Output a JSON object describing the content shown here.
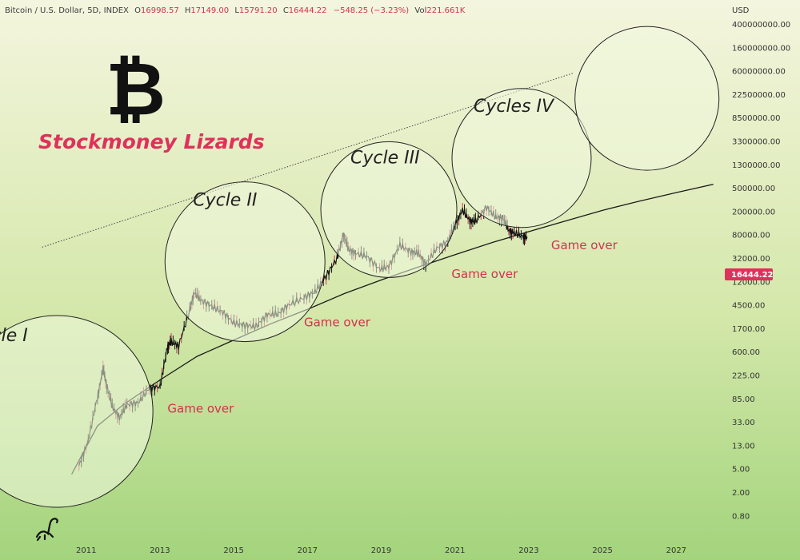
{
  "header": {
    "symbol": "Bitcoin / U.S. Dollar, 5D, INDEX",
    "open_label": "O",
    "open": "16998.57",
    "high_label": "H",
    "high": "17149.00",
    "low_label": "L",
    "low": "15791.20",
    "close_label": "C",
    "close": "16444.22",
    "change": "−548.25 (−3.23%)",
    "vol_label": "Vol",
    "vol": "221.661K"
  },
  "brand": {
    "logo_glyph": "₿",
    "name": "Stockmoney Lizards"
  },
  "price_badge": "16444.22",
  "colors": {
    "accent": "#e0305b",
    "badge": "#e0305b",
    "background_top": "#f3f5dc",
    "background_bottom": "#a6d680"
  },
  "chart_data": {
    "type": "line",
    "currency": "USD",
    "y_scale": "log",
    "ylim": [
      0.4,
      800000000
    ],
    "xlim": [
      2009.8,
      2028.0
    ],
    "x_ticks": [
      "2011",
      "2013",
      "2015",
      "2017",
      "2019",
      "2021",
      "2023",
      "2025",
      "2027"
    ],
    "y_ticks": [
      "400000000.00",
      "160000000.00",
      "60000000.00",
      "22500000.00",
      "8500000.00",
      "3300000.00",
      "1300000.00",
      "500000.00",
      "200000.00",
      "80000.00",
      "32000.00",
      "12000.00",
      "4500.00",
      "1700.00",
      "600.00",
      "225.00",
      "85.00",
      "33.00",
      "13.00",
      "5.00",
      "2.00",
      "0.80"
    ],
    "series": [
      {
        "kind": "price",
        "x": [
          2010.8,
          2011.05,
          2011.3,
          2011.45,
          2011.55,
          2011.7,
          2011.9,
          2012.1,
          2012.4,
          2012.7,
          2013.0,
          2013.2,
          2013.3,
          2013.5,
          2013.8,
          2013.92,
          2014.1,
          2014.4,
          2014.7,
          2015.0,
          2015.3,
          2015.6,
          2015.9,
          2016.2,
          2016.5,
          2016.9,
          2017.2,
          2017.5,
          2017.8,
          2017.97,
          2018.1,
          2018.3,
          2018.6,
          2018.95,
          2019.2,
          2019.5,
          2019.8,
          2020.0,
          2020.2,
          2020.5,
          2020.8,
          2021.0,
          2021.2,
          2021.4,
          2021.55,
          2021.85,
          2022.1,
          2022.3,
          2022.45,
          2022.6,
          2022.85,
          2022.95
        ],
        "y": [
          0.3,
          1.0,
          8,
          30,
          14,
          5,
          3,
          5.5,
          6,
          12,
          13,
          90,
          110,
          90,
          500,
          1150,
          800,
          600,
          450,
          270,
          240,
          230,
          400,
          420,
          650,
          900,
          1200,
          2500,
          6000,
          19000,
          9000,
          7500,
          6500,
          3500,
          4000,
          11000,
          8000,
          7500,
          4500,
          9500,
          13000,
          30000,
          58000,
          35000,
          34000,
          67000,
          42000,
          40000,
          22000,
          20000,
          16500,
          16444
        ]
      }
    ],
    "support_curve": {
      "x": [
        2010.6,
        2011.3,
        2012.0,
        2013.0,
        2014.0,
        2015.0,
        2016.0,
        2017.0,
        2018.0,
        2019.0,
        2020.0,
        2021.0,
        2022.0,
        2023.0,
        2024.0,
        2025.0,
        2026.0,
        2027.0,
        2028.0
      ],
      "y": [
        0.2,
        2.0,
        5.5,
        18,
        55,
        120,
        260,
        520,
        1100,
        2100,
        3900,
        7000,
        12500,
        21000,
        35000,
        58000,
        90000,
        135000,
        200000
      ]
    },
    "upper_line": {
      "x": [
        2009.8,
        2024.2
      ],
      "y": [
        10000,
        40000000
      ],
      "style": "dotted"
    },
    "cycles": [
      {
        "label": "Cycle I",
        "x": 2010.2,
        "y": 4
      },
      {
        "label": "Cycle II",
        "x": 2015.3,
        "y": 5000
      },
      {
        "label": "Cycle III",
        "x": 2019.2,
        "y": 60000
      },
      {
        "label": "Cycles IV",
        "x": 2022.8,
        "y": 700000
      },
      {
        "label": "",
        "x": 2026.2,
        "y": 12000000
      }
    ],
    "annotations": [
      {
        "text": "Game over",
        "x": 2013.2,
        "y": 3.8
      },
      {
        "text": "Game over",
        "x": 2016.9,
        "y": 230
      },
      {
        "text": "Game over",
        "x": 2020.9,
        "y": 2300
      },
      {
        "text": "Game over",
        "x": 2023.6,
        "y": 9000
      }
    ]
  }
}
